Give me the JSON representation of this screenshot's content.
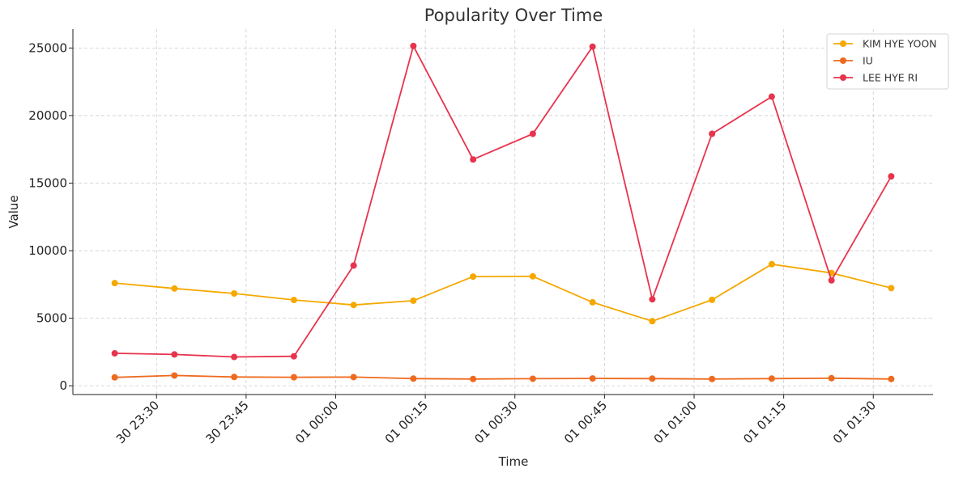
{
  "chart_data": {
    "type": "line",
    "title": "Popularity Over Time",
    "xlabel": "Time",
    "ylabel": "Value",
    "x": [
      "2024-04-30T23:23:00",
      "2024-04-30T23:33:00",
      "2024-04-30T23:43:00",
      "2024-04-30T23:53:00",
      "2024-05-01T00:03:00",
      "2024-05-01T00:13:00",
      "2024-05-01T00:23:00",
      "2024-05-01T00:33:00",
      "2024-05-01T00:43:00",
      "2024-05-01T00:53:00",
      "2024-05-01T01:03:00",
      "2024-05-01T01:13:00",
      "2024-05-01T01:23:00",
      "2024-05-01T01:33:00"
    ],
    "x_ticks": [
      {
        "t": "2024-04-30T23:30:00",
        "label": "30 23:30"
      },
      {
        "t": "2024-04-30T23:45:00",
        "label": "30 23:45"
      },
      {
        "t": "2024-05-01T00:00:00",
        "label": "01 00:00"
      },
      {
        "t": "2024-05-01T00:15:00",
        "label": "01 00:15"
      },
      {
        "t": "2024-05-01T00:30:00",
        "label": "01 00:30"
      },
      {
        "t": "2024-05-01T00:45:00",
        "label": "01 00:45"
      },
      {
        "t": "2024-05-01T01:00:00",
        "label": "01 01:00"
      },
      {
        "t": "2024-05-01T01:15:00",
        "label": "01 01:15"
      },
      {
        "t": "2024-05-01T01:30:00",
        "label": "01 01:30"
      }
    ],
    "y_ticks": [
      0,
      5000,
      10000,
      15000,
      20000,
      25000
    ],
    "ylim": [
      -650,
      26400
    ],
    "xlim": [
      "2024-04-30T23:16:00",
      "2024-05-01T01:40:00"
    ],
    "grid": true,
    "legend_position": "top-right",
    "series": [
      {
        "name": "KIM HYE YOON",
        "color": "#f5a800",
        "values": [
          7600,
          7200,
          6830,
          6350,
          5980,
          6300,
          8080,
          8100,
          6180,
          4780,
          6360,
          9000,
          8350,
          7230
        ]
      },
      {
        "name": "IU",
        "color": "#ee6a1e",
        "values": [
          620,
          760,
          650,
          630,
          640,
          530,
          500,
          520,
          540,
          530,
          500,
          530,
          560,
          500
        ]
      },
      {
        "name": "LEE HYE RI",
        "color": "#e8334d",
        "values": [
          2400,
          2320,
          2130,
          2180,
          8900,
          25150,
          16750,
          18650,
          25100,
          6400,
          18650,
          21400,
          7800,
          15500
        ]
      }
    ]
  }
}
